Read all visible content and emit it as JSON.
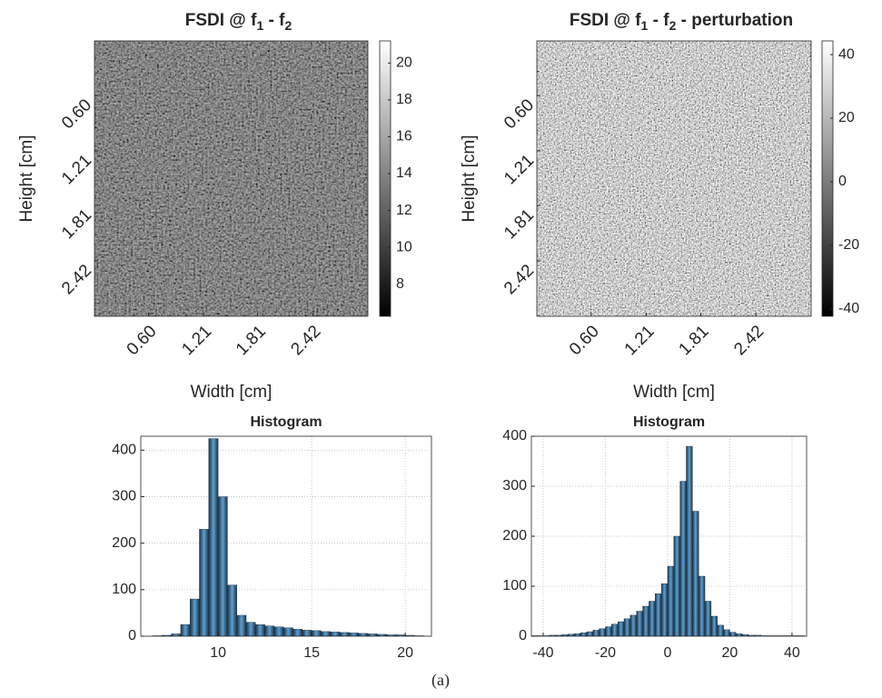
{
  "chart_data": [
    {
      "type": "heatmap",
      "title_parts": [
        "FSDI @ f",
        "1",
        " - f",
        "2"
      ],
      "xlabel": "Width [cm]",
      "ylabel": "Height [cm]",
      "xlim": [
        0,
        3.03
      ],
      "ylim": [
        0,
        3.03
      ],
      "xticks": [
        {
          "value": 0.6,
          "label": "0.60"
        },
        {
          "value": 1.21,
          "label": "1.21"
        },
        {
          "value": 1.81,
          "label": "1.81"
        },
        {
          "value": 2.42,
          "label": "2.42"
        }
      ],
      "yticks": [
        {
          "value": 0.6,
          "label": "0.60"
        },
        {
          "value": 1.21,
          "label": "1.21"
        },
        {
          "value": 1.81,
          "label": "1.81"
        },
        {
          "value": 2.42,
          "label": "2.42"
        }
      ],
      "colormap": "gray",
      "clim": [
        6.26,
        21.2
      ],
      "cticks": [
        8,
        10,
        12,
        14,
        16,
        18,
        20
      ]
    },
    {
      "type": "heatmap",
      "title_parts": [
        "FSDI @ f",
        "1",
        " - f",
        "2",
        " - perturbation"
      ],
      "xlabel": "Width [cm]",
      "ylabel": "Height [cm]",
      "xlim": [
        0,
        3.03
      ],
      "ylim": [
        0,
        3.03
      ],
      "xticks": [
        {
          "value": 0.6,
          "label": "0.60"
        },
        {
          "value": 1.21,
          "label": "1.21"
        },
        {
          "value": 1.81,
          "label": "1.81"
        },
        {
          "value": 2.42,
          "label": "2.42"
        }
      ],
      "yticks": [
        {
          "value": 0.6,
          "label": "0.60"
        },
        {
          "value": 1.21,
          "label": "1.21"
        },
        {
          "value": 1.81,
          "label": "1.81"
        },
        {
          "value": 2.42,
          "label": "2.42"
        }
      ],
      "colormap": "gray",
      "clim": [
        -42.3,
        44.3
      ],
      "cticks": [
        -40,
        -20,
        0,
        20,
        40
      ]
    },
    {
      "type": "histogram",
      "title": "Histogram",
      "color": "#4a8cbd",
      "grid": true,
      "bins": [
        6,
        6.5,
        7,
        7.5,
        8,
        8.5,
        9,
        9.5,
        10,
        10.5,
        11,
        11.5,
        12,
        12.5,
        13,
        13.5,
        14,
        14.5,
        15,
        15.5,
        16,
        16.5,
        17,
        17.5,
        18,
        18.5,
        19,
        19.5,
        20,
        20.5,
        21
      ],
      "values": [
        0,
        1,
        2,
        5,
        25,
        80,
        230,
        425,
        300,
        110,
        45,
        30,
        25,
        22,
        20,
        18,
        15,
        13,
        12,
        10,
        9,
        8,
        7,
        6,
        5,
        4,
        3,
        3,
        2,
        1
      ],
      "xlim": [
        5.87,
        21.4
      ],
      "ylim": [
        0,
        430
      ],
      "xticks": [
        10,
        15,
        20
      ],
      "yticks": [
        0,
        100,
        200,
        300,
        400
      ]
    },
    {
      "type": "histogram",
      "title": "Histogram",
      "color": "#4a8cbd",
      "grid": true,
      "bins": [
        -44,
        -42,
        -40,
        -38,
        -36,
        -34,
        -32,
        -30,
        -28,
        -26,
        -24,
        -22,
        -20,
        -18,
        -16,
        -14,
        -12,
        -10,
        -8,
        -6,
        -4,
        -2,
        0,
        2,
        4,
        6,
        8,
        10,
        12,
        14,
        16,
        18,
        20,
        22,
        24,
        26,
        28,
        30,
        32,
        34,
        36,
        38,
        40,
        42,
        44
      ],
      "values": [
        1,
        1,
        1,
        2,
        2,
        3,
        4,
        5,
        7,
        9,
        12,
        15,
        19,
        24,
        29,
        35,
        42,
        50,
        60,
        70,
        85,
        105,
        140,
        200,
        310,
        380,
        250,
        120,
        70,
        40,
        22,
        13,
        8,
        5,
        3,
        2,
        2,
        1,
        1,
        1,
        1,
        1,
        1,
        1
      ],
      "xlim": [
        -43.8,
        44.7
      ],
      "ylim": [
        0,
        400
      ],
      "xticks": [
        -40,
        -20,
        0,
        20,
        40
      ],
      "yticks": [
        0,
        100,
        200,
        300,
        400
      ]
    }
  ],
  "caption": "(a)"
}
